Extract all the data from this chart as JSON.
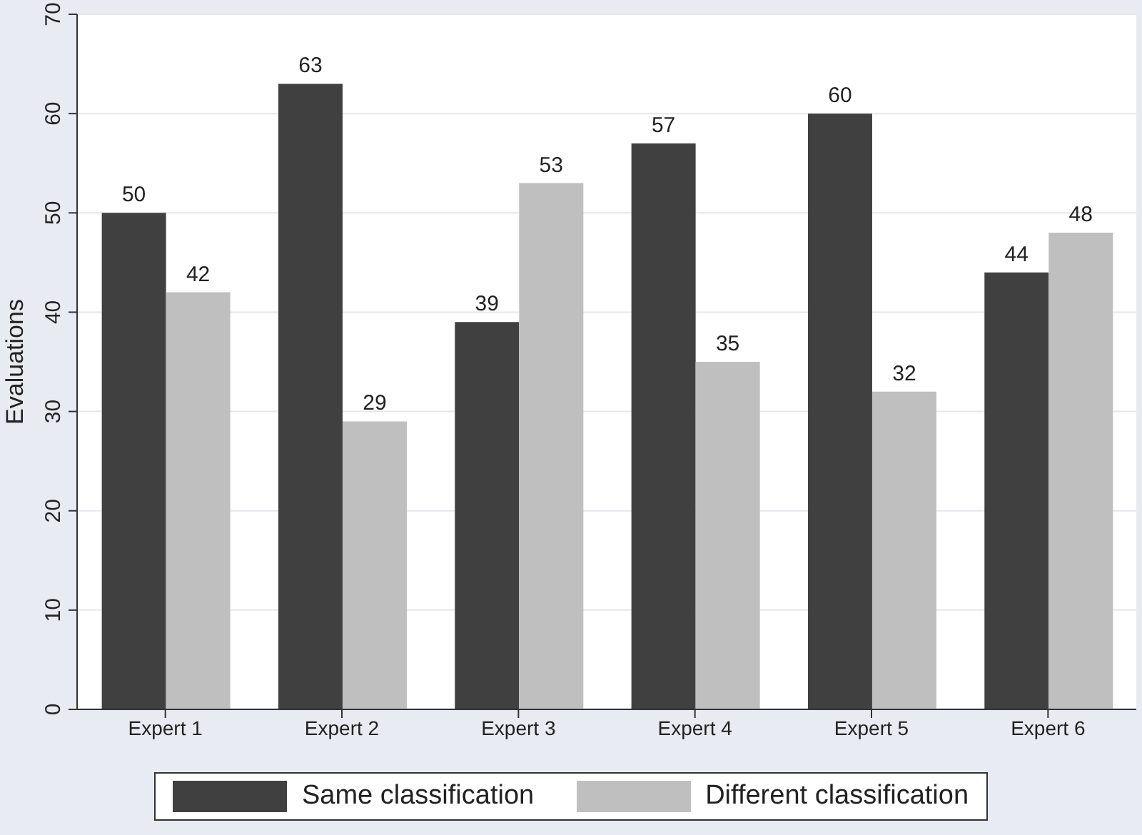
{
  "chart_data": {
    "type": "bar",
    "ylabel": "Evaluations",
    "categories": [
      "Expert 1",
      "Expert 2",
      "Expert 3",
      "Expert 4",
      "Expert 5",
      "Expert 6"
    ],
    "series": [
      {
        "name": "Same classification",
        "color": "#404040",
        "values": [
          50,
          63,
          39,
          57,
          60,
          44
        ]
      },
      {
        "name": "Different classification",
        "color": "#bfbfbf",
        "values": [
          42,
          29,
          53,
          35,
          32,
          48
        ]
      }
    ],
    "ylim": [
      0,
      70
    ],
    "yticks": [
      0,
      10,
      20,
      30,
      40,
      50,
      60,
      70
    ],
    "grid": "y",
    "legend": "bottom",
    "data_labels": true
  }
}
